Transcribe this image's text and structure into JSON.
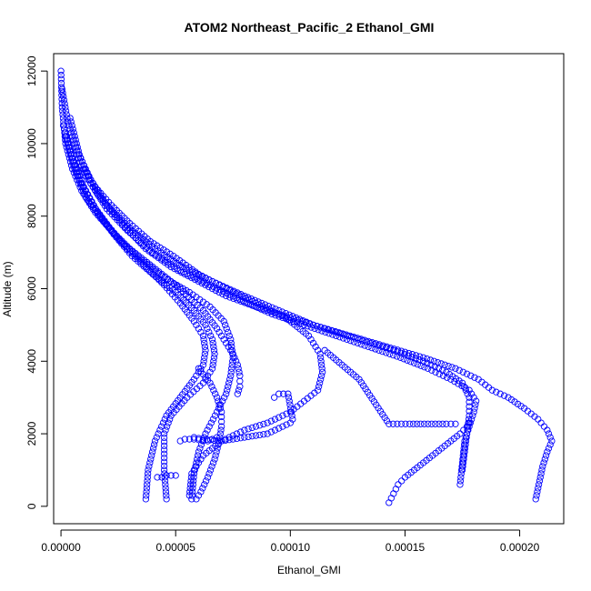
{
  "chart_data": {
    "type": "scatter",
    "title": "ATOM2 Northeast_Pacific_2 Ethanol_GMI",
    "xlabel": "Ethanol_GMI",
    "ylabel": "Altitude (m)",
    "xlim": [
      -3.2e-06,
      0.0002192
    ],
    "ylim": [
      -480,
      12480
    ],
    "x_ticks": [
      0,
      5e-05,
      0.0001,
      0.00015,
      0.0002
    ],
    "x_tick_labels": [
      "0.00000",
      "0.00005",
      "0.00010",
      "0.00015",
      "0.00020"
    ],
    "y_ticks": [
      0,
      2000,
      4000,
      6000,
      8000,
      10000,
      12000
    ],
    "y_tick_labels": [
      "0",
      "2000",
      "4000",
      "6000",
      "8000",
      "10000",
      "12000"
    ],
    "grid": false,
    "marker": "open-circle",
    "color": "#0000ff",
    "series": [
      {
        "x": [
          0,
          5e-07,
          2e-06,
          5e-06,
          9e-06,
          1.5e-05,
          2.2e-05,
          3e-05,
          4e-05,
          5.2e-05,
          6.2e-05,
          6.8e-05,
          7.2e-05,
          7.5e-05,
          7.7e-05,
          7.8e-05,
          7.8e-05,
          7.7e-05
        ],
        "y": [
          12000,
          11000,
          10000,
          9300,
          8700,
          8100,
          7600,
          7100,
          6600,
          6000,
          5400,
          4900,
          4500,
          4200,
          3900,
          3600,
          3300,
          3100
        ]
      },
      {
        "x": [
          5e-07,
          3e-06,
          7e-06,
          1.3e-05,
          2e-05,
          2.8e-05,
          3.7e-05,
          4.8e-05,
          6e-05,
          7.2e-05,
          8.5e-05,
          0.0001,
          0.000115,
          0.00013,
          0.000145,
          0.000158,
          0.000168,
          0.000175,
          0.000178,
          0.000178,
          0.000177,
          0.000176,
          0.000175
        ],
        "y": [
          11500,
          10600,
          9800,
          9000,
          8300,
          7700,
          7100,
          6600,
          6200,
          5800,
          5500,
          5200,
          4900,
          4600,
          4300,
          4000,
          3700,
          3400,
          3000,
          2500,
          2000,
          1500,
          1000
        ]
      },
      {
        "x": [
          4e-06,
          8e-06,
          1.3e-05,
          2e-05,
          2.9e-05,
          4e-05,
          5.2e-05,
          6.5e-05,
          7.8e-05,
          9.2e-05,
          0.000106,
          0.00012,
          0.000134,
          0.000148,
          0.00016,
          0.00017,
          0.000178,
          0.000181,
          0.00018,
          0.000178,
          0.000176,
          0.000175,
          0.000174
        ],
        "y": [
          10700,
          9700,
          8900,
          8200,
          7600,
          7000,
          6500,
          6100,
          5700,
          5300,
          5000,
          4700,
          4400,
          4100,
          3800,
          3500,
          3200,
          2900,
          2600,
          2200,
          1800,
          1200,
          600
        ]
      },
      {
        "x": [
          7e-06,
          1.1e-05,
          1.6e-05,
          2.3e-05,
          3.1e-05,
          4.1e-05,
          5.3e-05,
          6.6e-05,
          8e-05,
          9.5e-05,
          0.00011,
          0.000126,
          0.000142,
          0.000158,
          0.000172,
          0.000182,
          0.000188,
          0.000195,
          0.000202,
          0.000208,
          0.000212,
          0.000214,
          0.000212,
          0.00021,
          0.000209,
          0.000208,
          0.000207
        ],
        "y": [
          9700,
          9100,
          8600,
          8100,
          7600,
          7100,
          6600,
          6200,
          5800,
          5400,
          5000,
          4700,
          4400,
          4100,
          3800,
          3500,
          3200,
          3000,
          2700,
          2400,
          2100,
          1800,
          1500,
          1100,
          800,
          500,
          200
        ]
      },
      {
        "x": [
          1e-05,
          1.5e-05,
          2.2e-05,
          3e-05,
          3.9e-05,
          4.9e-05,
          6e-05,
          7.2e-05,
          8.5e-05,
          9.8e-05,
          0.000108,
          0.000113,
          0.000114,
          0.000112,
          0.000106,
          0.0001,
          9e-05,
          8e-05,
          7e-05,
          6.2e-05,
          5.7e-05,
          5.6e-05
        ],
        "y": [
          9300,
          8800,
          8300,
          7800,
          7300,
          6900,
          6400,
          6000,
          5600,
          5200,
          4700,
          4200,
          3700,
          3200,
          2900,
          2600,
          2300,
          2100,
          1800,
          1400,
          900,
          300
        ]
      },
      {
        "x": [
          1e-06,
          5e-06,
          1e-05,
          1.6e-05,
          2.3e-05,
          3.1e-05,
          4e-05,
          5e-05,
          5.8e-05,
          6.3e-05,
          6.6e-05,
          6.7e-05,
          6.6e-05,
          6.2e-05,
          5.5e-05,
          4.8e-05,
          4.5e-05,
          4.5e-05,
          4.6e-05
        ],
        "y": [
          10500,
          9600,
          8800,
          8100,
          7500,
          6900,
          6400,
          5900,
          5400,
          5000,
          4600,
          4200,
          3800,
          3400,
          3000,
          2500,
          2000,
          1000,
          200
        ]
      },
      {
        "x": [
          2e-06,
          6e-06,
          1.1e-05,
          1.8e-05,
          2.6e-05,
          3.5e-05,
          4.5e-05,
          5.6e-05,
          6.5e-05,
          7.1e-05,
          7.4e-05,
          7.5e-05,
          7.4e-05,
          7.2e-05,
          6.8e-05,
          6.3e-05,
          6e-05,
          5.8e-05,
          5.7e-05
        ],
        "y": [
          10200,
          9300,
          8500,
          7900,
          7300,
          6800,
          6300,
          5900,
          5500,
          5100,
          4600,
          4100,
          3600,
          3100,
          2600,
          2000,
          1500,
          900,
          200
        ]
      },
      {
        "x": [
          3e-06,
          8e-06,
          1.4e-05,
          2.1e-05,
          2.9e-05,
          3.7e-05,
          4.5e-05,
          5.2e-05,
          5.8e-05,
          6.2e-05,
          6.3e-05,
          6.2e-05,
          5.8e-05,
          5.2e-05,
          4.6e-05,
          4.1e-05,
          3.8e-05,
          3.7e-05
        ],
        "y": [
          10000,
          9000,
          8300,
          7700,
          7100,
          6600,
          6100,
          5600,
          5100,
          4700,
          4300,
          3900,
          3500,
          3000,
          2500,
          1800,
          1000,
          200
        ]
      },
      {
        "x": [
          6e-05,
          6.5e-05,
          6.8e-05,
          7e-05,
          7e-05,
          6.9e-05,
          6.7e-05,
          6.4e-05,
          6.1e-05,
          5.9e-05
        ],
        "y": [
          3800,
          3400,
          3000,
          2600,
          2200,
          1800,
          1300,
          800,
          400,
          200
        ]
      },
      {
        "x": [
          0.000115,
          0.00013,
          0.000143,
          0.000152,
          0.00016,
          0.000168,
          0.000172
        ],
        "y": [
          4300,
          3500,
          2270,
          2270,
          2270,
          2270,
          2270
        ]
      },
      {
        "x": [
          0.000143,
          0.000145,
          0.000147,
          0.00015,
          0.000154,
          0.000158,
          0.000162,
          0.000166,
          0.00017,
          0.000174,
          0.000177,
          0.000178
        ],
        "y": [
          100,
          350,
          600,
          800,
          1000,
          1200,
          1400,
          1600,
          1800,
          2000,
          2200,
          2300
        ]
      },
      {
        "x": [
          0.0001,
          9e-05,
          8e-05,
          7e-05,
          6.2e-05,
          5.8e-05
        ],
        "y": [
          2300,
          2000,
          1900,
          1800,
          1850,
          1900
        ]
      },
      {
        "x": [
          4.2e-05,
          4.4e-05,
          4.6e-05,
          4.8e-05,
          5e-05
        ],
        "y": [
          800,
          800,
          850,
          850,
          850
        ]
      },
      {
        "x": [
          5.2e-05,
          5.4e-05,
          5.6e-05,
          5.8e-05,
          6.4e-05,
          6.6e-05,
          6.8e-05
        ],
        "y": [
          1800,
          1850,
          1850,
          1850,
          1800,
          1850,
          1900
        ]
      },
      {
        "x": [
          9.3e-05,
          9.5e-05,
          9.7e-05,
          9.9e-05,
          0.000101
        ],
        "y": [
          3000,
          3100,
          3100,
          3100,
          2400
        ]
      }
    ]
  }
}
